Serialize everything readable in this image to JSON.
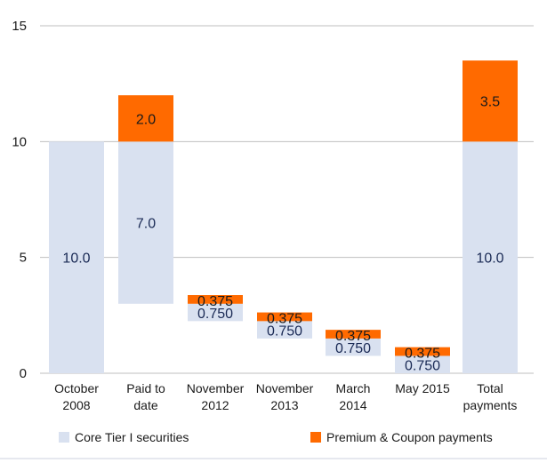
{
  "chart_data": {
    "type": "bar",
    "subtype": "stacked-waterfall",
    "ylim": [
      0,
      15
    ],
    "yticks": [
      "0",
      "5",
      "10",
      "15"
    ],
    "categories": [
      [
        "October",
        "2008"
      ],
      [
        "Paid to",
        "date"
      ],
      [
        "November",
        "2012"
      ],
      [
        "November",
        "2013"
      ],
      [
        "March",
        "2014"
      ],
      [
        "May 2015"
      ],
      [
        "Total",
        "payments"
      ]
    ],
    "series": [
      {
        "name": "Core Tier I securities",
        "color": "#d9e1f0",
        "bases": [
          0,
          3.0,
          2.25,
          1.5,
          0.75,
          0,
          0
        ],
        "values": [
          10.0,
          7.0,
          0.75,
          0.75,
          0.75,
          0.75,
          10.0
        ],
        "labels": [
          "10.0",
          "7.0",
          "0.750",
          "0.750",
          "0.750",
          "0.750",
          "10.0"
        ]
      },
      {
        "name": "Premium & Coupon payments",
        "color": "#ff6a00",
        "values": [
          0,
          2.0,
          0.375,
          0.375,
          0.375,
          0.375,
          3.5
        ],
        "labels": [
          "",
          "2.0",
          "0.375",
          "0.375",
          "0.375",
          "0.375",
          "3.5"
        ]
      }
    ],
    "legend": [
      {
        "label": "Core Tier I securities",
        "color": "#d9e1f0"
      },
      {
        "label": "Premium & Coupon payments",
        "color": "#ff6a00"
      }
    ],
    "gridline_color": "#bfbfbf"
  }
}
